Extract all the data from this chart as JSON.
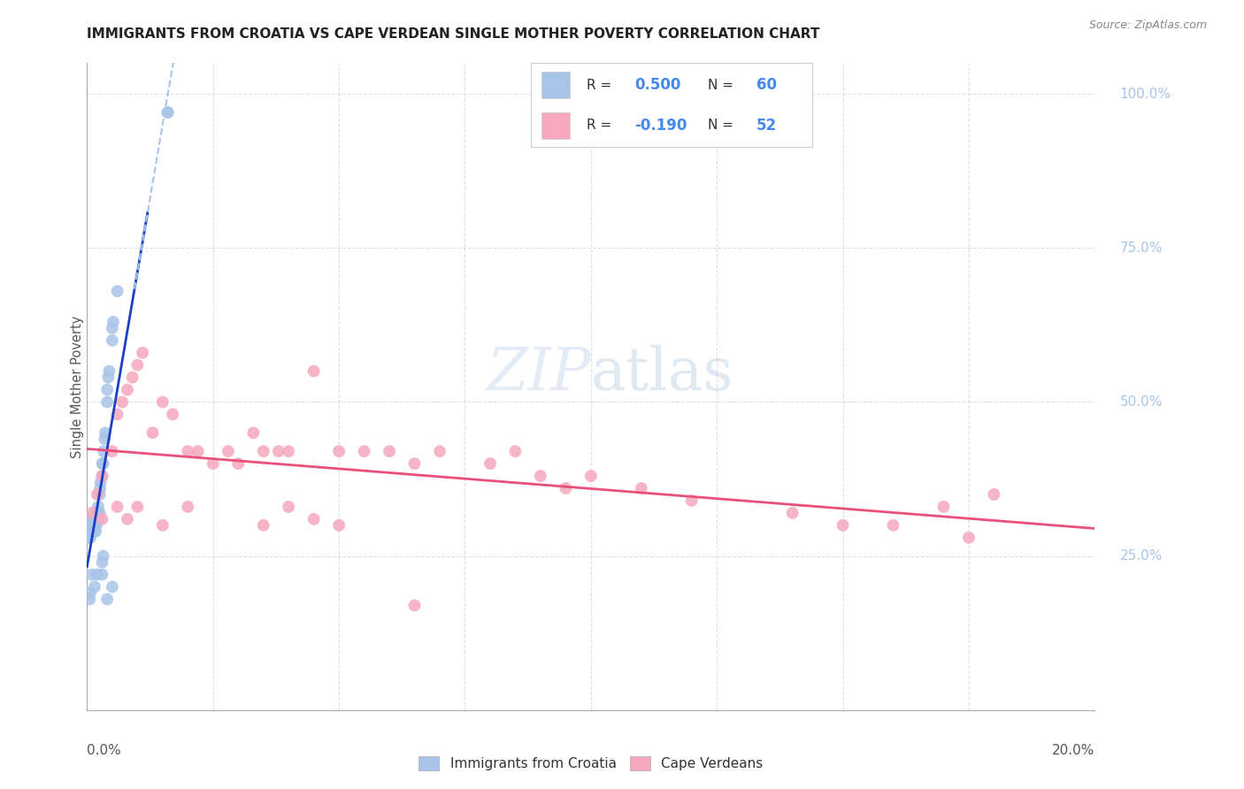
{
  "title": "IMMIGRANTS FROM CROATIA VS CAPE VERDEAN SINGLE MOTHER POVERTY CORRELATION CHART",
  "source": "Source: ZipAtlas.com",
  "ylabel": "Single Mother Poverty",
  "blue_color": "#a8c4e8",
  "pink_color": "#f5a8be",
  "trend_blue": "#1a3fc4",
  "trend_blue_dash": "#a8c4e8",
  "trend_pink": "#e8507a",
  "background": "#ffffff",
  "grid_color": "#e0e0e0",
  "watermark_zip": "ZIP",
  "watermark_atlas": "atlas",
  "R_blue_text": "0.500",
  "N_blue_text": "60",
  "R_pink_text": "-0.190",
  "N_pink_text": "52",
  "legend_label1": "Immigrants from Croatia",
  "legend_label2": "Cape Verdeans",
  "blue_x": [
    0.0002,
    0.0008,
    0.0009,
    0.0012,
    0.0013,
    0.0015,
    0.0016,
    0.0018,
    0.0019,
    0.002,
    0.0021,
    0.0022,
    0.0023,
    0.0025,
    0.0026,
    0.0027,
    0.003,
    0.003,
    0.0032,
    0.0033,
    0.0035,
    0.0036,
    0.004,
    0.004,
    0.0042,
    0.0044,
    0.005,
    0.005,
    0.0052,
    0.006,
    0.0001,
    0.0002,
    0.0003,
    0.0003,
    0.0004,
    0.0005,
    0.0006,
    0.0007,
    0.0008,
    0.001,
    0.0011,
    0.0013,
    0.0014,
    0.0016,
    0.0017,
    0.002,
    0.0022,
    0.0025,
    0.003,
    0.0032,
    0.0005,
    0.0006,
    0.0009,
    0.0015,
    0.002,
    0.003,
    0.004,
    0.005,
    0.016,
    0.016
  ],
  "blue_y": [
    0.29,
    0.29,
    0.31,
    0.3,
    0.3,
    0.31,
    0.3,
    0.3,
    0.31,
    0.32,
    0.32,
    0.33,
    0.31,
    0.35,
    0.36,
    0.37,
    0.4,
    0.38,
    0.4,
    0.42,
    0.44,
    0.45,
    0.5,
    0.52,
    0.54,
    0.55,
    0.6,
    0.62,
    0.63,
    0.68,
    0.29,
    0.3,
    0.28,
    0.31,
    0.28,
    0.3,
    0.28,
    0.29,
    0.3,
    0.29,
    0.31,
    0.29,
    0.3,
    0.31,
    0.29,
    0.31,
    0.32,
    0.32,
    0.22,
    0.25,
    0.18,
    0.19,
    0.22,
    0.2,
    0.22,
    0.24,
    0.18,
    0.2,
    0.97,
    0.97
  ],
  "pink_x": [
    0.001,
    0.002,
    0.003,
    0.005,
    0.006,
    0.007,
    0.008,
    0.009,
    0.01,
    0.011,
    0.013,
    0.015,
    0.017,
    0.02,
    0.022,
    0.025,
    0.028,
    0.03,
    0.033,
    0.035,
    0.038,
    0.04,
    0.045,
    0.05,
    0.055,
    0.06,
    0.065,
    0.07,
    0.08,
    0.085,
    0.09,
    0.095,
    0.1,
    0.11,
    0.12,
    0.14,
    0.15,
    0.16,
    0.17,
    0.175,
    0.003,
    0.006,
    0.008,
    0.01,
    0.015,
    0.02,
    0.035,
    0.04,
    0.045,
    0.05,
    0.065,
    0.18
  ],
  "pink_y": [
    0.32,
    0.35,
    0.38,
    0.42,
    0.48,
    0.5,
    0.52,
    0.54,
    0.56,
    0.58,
    0.45,
    0.5,
    0.48,
    0.42,
    0.42,
    0.4,
    0.42,
    0.4,
    0.45,
    0.42,
    0.42,
    0.42,
    0.55,
    0.42,
    0.42,
    0.42,
    0.4,
    0.42,
    0.4,
    0.42,
    0.38,
    0.36,
    0.38,
    0.36,
    0.34,
    0.32,
    0.3,
    0.3,
    0.33,
    0.28,
    0.31,
    0.33,
    0.31,
    0.33,
    0.3,
    0.33,
    0.3,
    0.33,
    0.31,
    0.3,
    0.17,
    0.35
  ],
  "xmin": 0.0,
  "xmax": 0.2,
  "ymin": 0.0,
  "ymax": 1.05,
  "y_ticks": [
    0.25,
    0.5,
    0.75,
    1.0
  ],
  "y_tick_labels": [
    "25.0%",
    "50.0%",
    "75.0%",
    "100.0%"
  ],
  "x_tick_labels": [
    "0.0%",
    "20.0%"
  ]
}
